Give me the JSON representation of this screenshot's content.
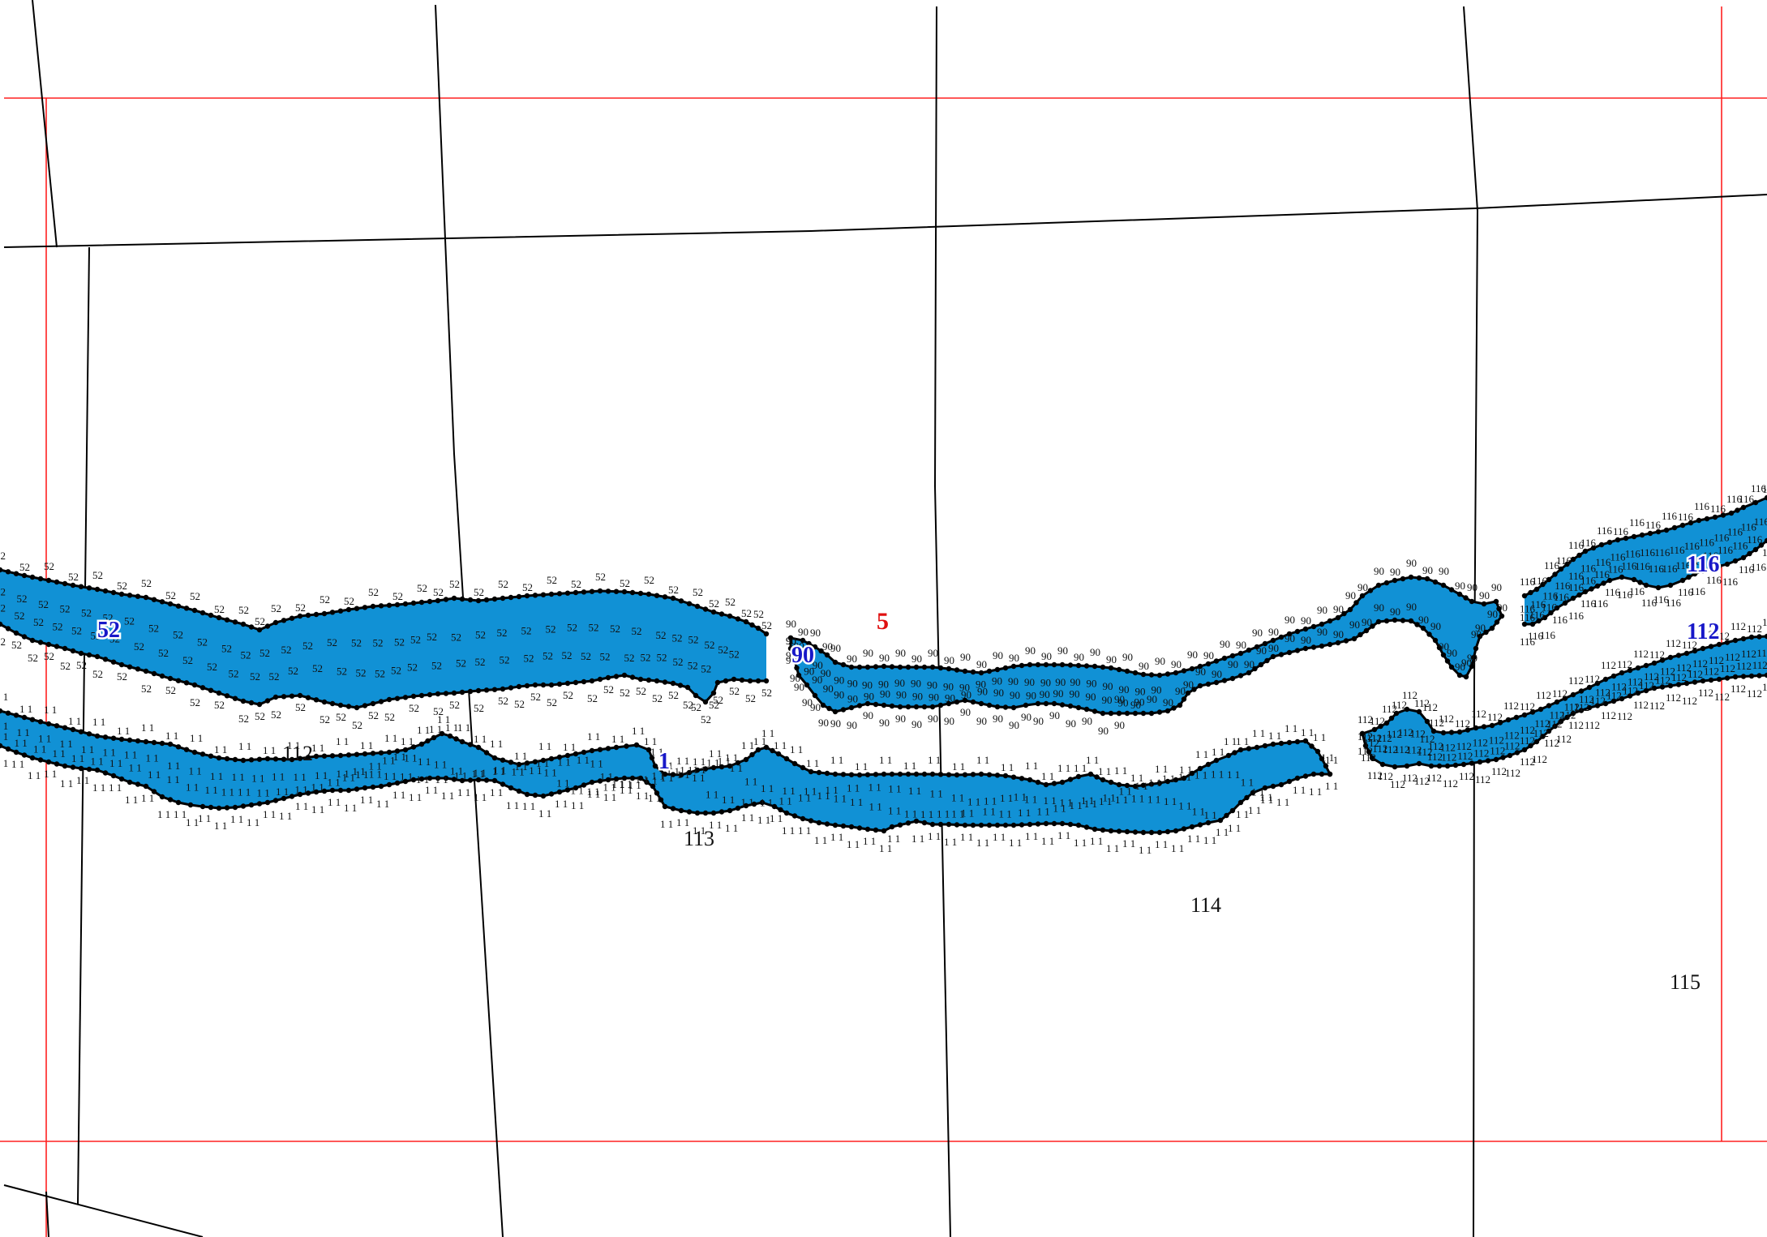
{
  "colors": {
    "ribbon_fill": "#1191d5",
    "ribbon_outline": "#000000",
    "sheet_frame": "#ff2020",
    "parcel_line": "#000000",
    "ribbon_label": "#1818c8",
    "sheet_label": "#e01010"
  },
  "sheet": {
    "label": "5"
  },
  "ribbons": [
    {
      "id": "52",
      "label": "52",
      "vertex_label": "52"
    },
    {
      "id": "1",
      "label": "1",
      "vertex_label": "1 1"
    },
    {
      "id": "90",
      "label": "90",
      "vertex_label": "90"
    },
    {
      "id": "112",
      "label": "112",
      "vertex_label": "112"
    },
    {
      "id": "116",
      "label": "116",
      "vertex_label": "116"
    }
  ],
  "parcels": [
    {
      "id": "p112",
      "label": "112"
    },
    {
      "id": "p113",
      "label": "113"
    },
    {
      "id": "p114",
      "label": "114"
    },
    {
      "id": "p115",
      "label": "115"
    }
  ]
}
